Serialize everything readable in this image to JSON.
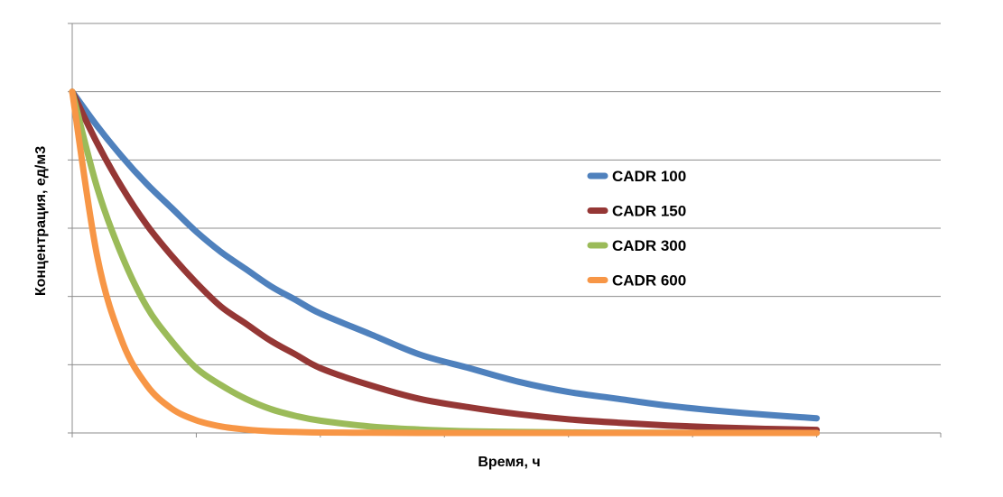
{
  "chart_data": {
    "type": "line",
    "xlabel": "Время, ч",
    "ylabel": "Концентрация, ед/м3",
    "xlim": [
      0,
      3.5
    ],
    "ylim": [
      0,
      1.2
    ],
    "grid": true,
    "legend_position": "center-right",
    "x_gridlines": [
      0,
      0.5,
      1,
      1.5,
      2,
      2.5,
      3,
      3.5
    ],
    "y_gridlines": [
      0,
      0.2,
      0.4,
      0.6,
      0.8,
      1.0,
      1.2
    ],
    "x": [
      0,
      0.1,
      0.2,
      0.3,
      0.4,
      0.5,
      0.6,
      0.7,
      0.8,
      0.9,
      1.0,
      1.2,
      1.4,
      1.6,
      1.8,
      2.0,
      2.2,
      2.4,
      2.6,
      2.8,
      3.0
    ],
    "series": [
      {
        "name": "CADR 100",
        "color": "#4f81bd",
        "values": [
          1.0,
          0.9,
          0.81,
          0.73,
          0.66,
          0.59,
          0.53,
          0.48,
          0.43,
          0.39,
          0.35,
          0.29,
          0.23,
          0.19,
          0.15,
          0.12,
          0.1,
          0.08,
          0.065,
          0.053,
          0.043
        ]
      },
      {
        "name": "CADR 150",
        "color": "#953735",
        "values": [
          1.0,
          0.85,
          0.72,
          0.61,
          0.52,
          0.44,
          0.37,
          0.32,
          0.27,
          0.23,
          0.19,
          0.14,
          0.1,
          0.075,
          0.055,
          0.04,
          0.03,
          0.022,
          0.016,
          0.012,
          0.009
        ]
      },
      {
        "name": "CADR 300",
        "color": "#9bbb59",
        "values": [
          1.0,
          0.72,
          0.52,
          0.37,
          0.27,
          0.19,
          0.14,
          0.1,
          0.07,
          0.05,
          0.036,
          0.019,
          0.01,
          0.005,
          0.003,
          0.0015,
          0.001,
          0.0005,
          0.0003,
          0.0002,
          0.0001
        ]
      },
      {
        "name": "CADR 600",
        "color": "#f79646",
        "values": [
          1.0,
          0.52,
          0.27,
          0.14,
          0.072,
          0.037,
          0.019,
          0.01,
          0.005,
          0.003,
          0.0014,
          0.0004,
          0.0001,
          0,
          0,
          0,
          0,
          0,
          0,
          0,
          0
        ]
      }
    ]
  }
}
